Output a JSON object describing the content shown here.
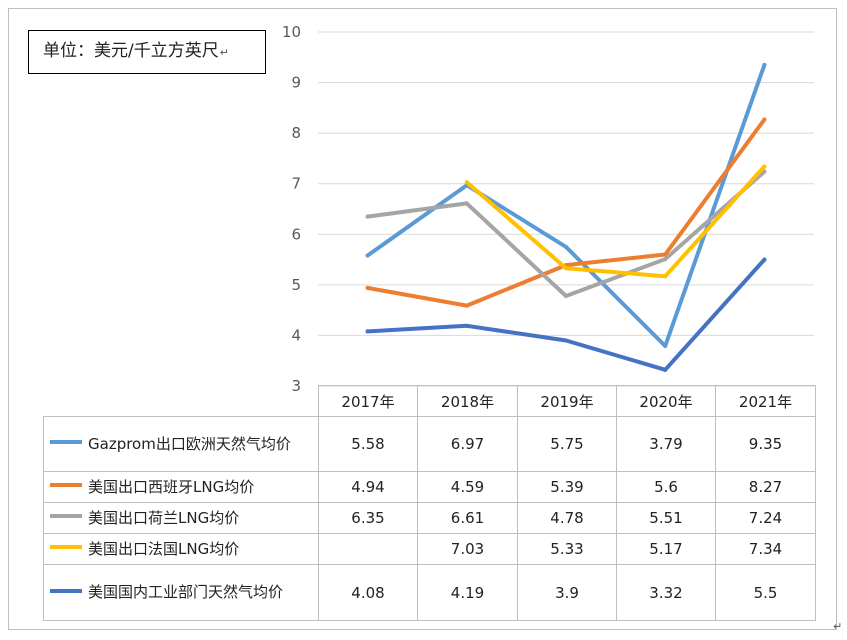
{
  "unit_label": "单位：美元/千立方英尺",
  "chart_data": {
    "type": "line",
    "categories": [
      "2017年",
      "2018年",
      "2019年",
      "2020年",
      "2021年"
    ],
    "ylim": [
      3,
      10
    ],
    "yticks": [
      "3",
      "4",
      "5",
      "6",
      "7",
      "8",
      "9",
      "10"
    ],
    "grid": true,
    "series": [
      {
        "name": "Gazprom出口欧洲天然气均价",
        "color": "#5b9bd5",
        "values": [
          5.58,
          6.97,
          5.75,
          3.79,
          9.35
        ],
        "display": [
          "5.58",
          "6.97",
          "5.75",
          "3.79",
          "9.35"
        ]
      },
      {
        "name": "美国出口西班牙LNG均价",
        "color": "#ed7d31",
        "values": [
          4.94,
          4.59,
          5.39,
          5.6,
          8.27
        ],
        "display": [
          "4.94",
          "4.59",
          "5.39",
          "5.6",
          "8.27"
        ]
      },
      {
        "name": "美国出口荷兰LNG均价",
        "color": "#a5a5a5",
        "values": [
          6.35,
          6.61,
          4.78,
          5.51,
          7.24
        ],
        "display": [
          "6.35",
          "6.61",
          "4.78",
          "5.51",
          "7.24"
        ]
      },
      {
        "name": "美国出口法国LNG均价",
        "color": "#ffc000",
        "values": [
          null,
          7.03,
          5.33,
          5.17,
          7.34
        ],
        "display": [
          "",
          "7.03",
          "5.33",
          "5.17",
          "7.34"
        ]
      },
      {
        "name": "美国国内工业部门天然气均价",
        "color": "#4472c4",
        "values": [
          4.08,
          4.19,
          3.9,
          3.32,
          5.5
        ],
        "display": [
          "4.08",
          "4.19",
          "3.9",
          "3.32",
          "5.5"
        ]
      }
    ]
  }
}
